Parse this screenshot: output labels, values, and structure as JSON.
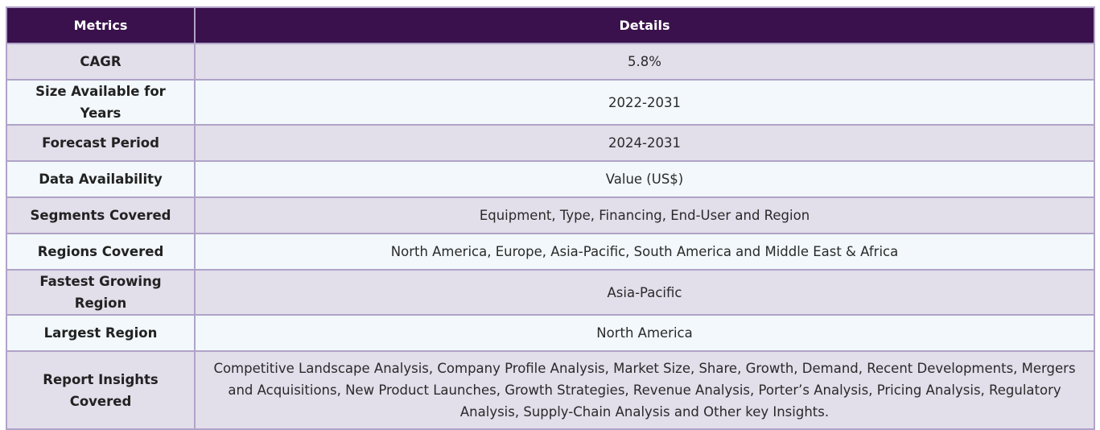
{
  "header": {
    "metrics_label": "Metrics",
    "details_label": "Details"
  },
  "rows": [
    {
      "metric": "CAGR",
      "detail": "5.8%"
    },
    {
      "metric": "Size Available for Years",
      "detail": "2022-2031"
    },
    {
      "metric": "Forecast Period",
      "detail": "2024-2031"
    },
    {
      "metric": "Data Availability",
      "detail": "Value (US$)"
    },
    {
      "metric": "Segments Covered",
      "detail": "Equipment, Type, Financing, End-User and Region"
    },
    {
      "metric": "Regions Covered",
      "detail": "North America, Europe, Asia-Pacific, South America and Middle East & Africa"
    },
    {
      "metric": "Fastest Growing Region",
      "detail": "Asia-Pacific"
    },
    {
      "metric": "Largest Region",
      "detail": "North America"
    },
    {
      "metric": "Report Insights Covered",
      "detail": "Competitive Landscape Analysis, Company Profile Analysis, Market Size, Share, Growth, Demand, Recent Developments, Mergers and Acquisitions, New Product Launches, Growth Strategies, Revenue Analysis, Porter’s Analysis, Pricing Analysis, Regulatory Analysis, Supply-Chain Analysis and Other key Insights."
    }
  ],
  "colors": {
    "header_bg": "#3a114c",
    "row_odd_bg": "#e2deea",
    "row_even_bg": "#f2f8fb",
    "border": "#b0a3c8"
  }
}
